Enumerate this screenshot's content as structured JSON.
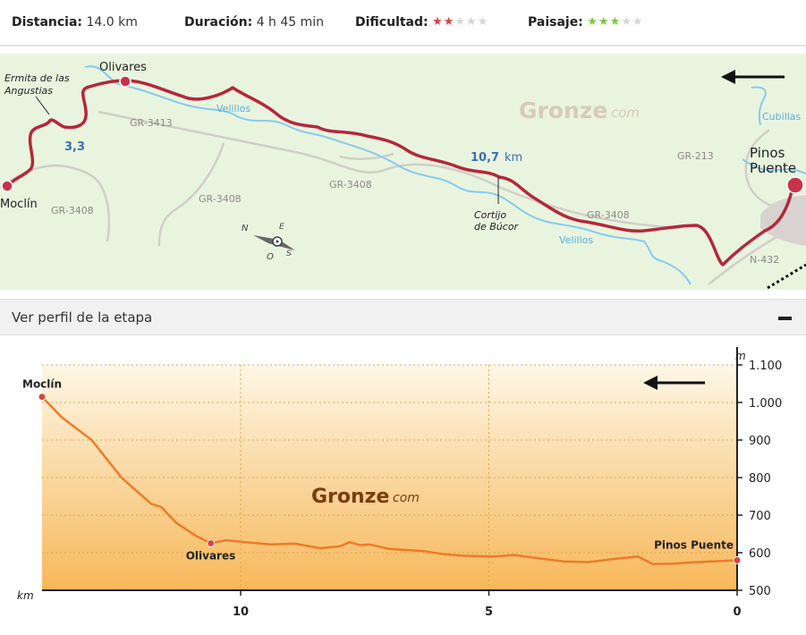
{
  "stats": {
    "distance_label": "Distancia:",
    "distance_value": "14.0 km",
    "duration_label": "Duración:",
    "duration_value": "4 h 45 min",
    "difficulty_label": "Dificultad:",
    "difficulty_rating": 2,
    "difficulty_max": 5,
    "difficulty_color": "#e23e3e",
    "scenery_label": "Paisaje:",
    "scenery_rating": 3,
    "scenery_max": 5,
    "scenery_color": "#7cc43b"
  },
  "map": {
    "places": {
      "moclin": "Moclín",
      "olivares": "Olivares",
      "pinos_puente_1": "Pinos",
      "pinos_puente_2": "Puente",
      "ermita_1": "Ermita de las",
      "ermita_2": "Angustias",
      "cortijo_1": "Cortijo",
      "cortijo_2": "de Búcor"
    },
    "rivers": {
      "velillos_1": "Velillos",
      "velillos_2": "Velillos",
      "cubillas": "Cubillas"
    },
    "roads": {
      "gr3413": "GR-3413",
      "gr3408_a": "GR-3408",
      "gr3408_b": "GR-3408",
      "gr3408_c": "GR-3408",
      "gr3408_d": "GR-3408",
      "gr213": "GR-213",
      "n432": "N-432"
    },
    "waypoints": {
      "wp1": "3,3",
      "wp2_value": "10,7",
      "wp2_unit": "km"
    },
    "watermark": {
      "main": "Gronze",
      "suffix": "com"
    },
    "compass": {
      "n": "N",
      "s": "S",
      "e": "E",
      "o": "O"
    },
    "colors": {
      "route": "#b5273a",
      "river": "#7fc6e8",
      "road": "#c8c8c0",
      "background": "#e9f4df"
    }
  },
  "toggle": {
    "label": "Ver perfil de la etapa",
    "icon": "minus-icon"
  },
  "chart_data": {
    "type": "area",
    "title": "",
    "xlabel": "km",
    "ylabel": "m",
    "x_reversed": true,
    "xlim": [
      14.0,
      0
    ],
    "ylim": [
      500,
      1100
    ],
    "x_ticks": [
      "10",
      "5",
      "0"
    ],
    "y_ticks": [
      "500",
      "600",
      "700",
      "800",
      "900",
      "1.000",
      "1.100"
    ],
    "grid": true,
    "watermark": "Gronze",
    "watermark_suffix": "com",
    "line_color": "#ee7a2a",
    "series": [
      {
        "x": [
          14.0,
          13.6,
          13.0,
          12.4,
          11.8,
          11.6,
          11.3,
          10.9,
          10.6,
          10.3,
          9.9,
          9.4,
          8.9,
          8.4,
          8.0,
          7.8,
          7.6,
          7.4,
          7.0,
          6.3,
          5.9,
          5.5,
          4.9,
          4.5,
          4.0,
          3.5,
          3.0,
          2.5,
          2.0,
          1.7,
          1.3,
          0.8,
          0.3,
          0
        ],
        "y": [
          1015,
          960,
          900,
          800,
          730,
          722,
          680,
          645,
          625,
          633,
          628,
          622,
          624,
          612,
          617,
          628,
          620,
          622,
          610,
          604,
          596,
          592,
          590,
          594,
          585,
          577,
          575,
          583,
          590,
          570,
          571,
          575,
          578,
          580
        ]
      }
    ],
    "points": [
      {
        "label": "Moclín",
        "x": 14.0,
        "y": 1015
      },
      {
        "label": "Olivares",
        "x": 10.6,
        "y": 625
      },
      {
        "label": "Pinos Puente",
        "x": 0,
        "y": 580
      }
    ]
  }
}
